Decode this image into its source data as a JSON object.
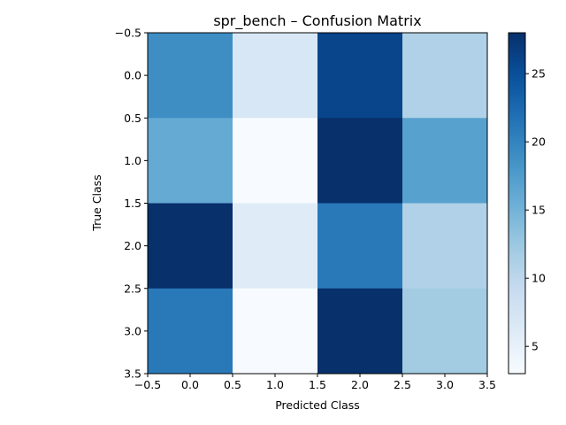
{
  "chart_data": {
    "type": "heatmap",
    "title": "spr_bench – Confusion Matrix",
    "xlabel": "Predicted Class",
    "ylabel": "True Class",
    "xlim": [
      -0.5,
      3.5
    ],
    "ylim": [
      3.5,
      -0.5
    ],
    "x_ticks": [
      -0.5,
      0.0,
      0.5,
      1.0,
      1.5,
      2.0,
      2.5,
      3.0,
      3.5
    ],
    "x_tick_labels": [
      "−0.5",
      "0.0",
      "0.5",
      "1.0",
      "1.5",
      "2.0",
      "2.5",
      "3.0",
      "3.5"
    ],
    "y_ticks": [
      -0.5,
      0.0,
      0.5,
      1.0,
      1.5,
      2.0,
      2.5,
      3.0,
      3.5
    ],
    "y_tick_labels": [
      "−0.5",
      "0.0",
      "0.5",
      "1.0",
      "1.5",
      "2.0",
      "2.5",
      "3.0",
      "3.5"
    ],
    "rows": [
      0,
      1,
      2,
      3
    ],
    "cols": [
      0,
      1,
      2,
      3
    ],
    "matrix": [
      [
        19,
        7,
        26,
        11
      ],
      [
        16,
        3,
        28,
        17
      ],
      [
        28,
        6,
        21,
        11
      ],
      [
        21,
        3,
        28,
        12
      ]
    ],
    "colormap": "Blues",
    "colorbar": {
      "min": 3,
      "max": 28,
      "ticks": [
        5,
        10,
        15,
        20,
        25
      ],
      "tick_labels": [
        "5",
        "10",
        "15",
        "20",
        "25"
      ]
    },
    "grid": false,
    "legend": "none"
  }
}
